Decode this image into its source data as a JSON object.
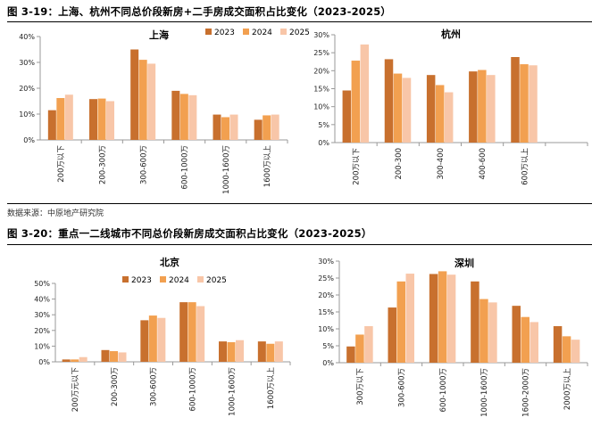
{
  "figures": [
    {
      "title": "图 3-19：上海、杭州不同总价段新房+二手房成交面积占比变化（2023-2025）"
    },
    {
      "title": "图 3-20：重点一二线城市不同总价段新房成交面积占比变化（2023-2025）"
    }
  ],
  "source": "数据来源：中原地产研究院",
  "legend": [
    "2023",
    "2024",
    "2025"
  ],
  "colors": {
    "2023": "#C8702E",
    "2024": "#F2A050",
    "2025": "#F8C6A8",
    "axis": "#999999",
    "text": "#222222"
  },
  "chart_data": [
    {
      "type": "bar",
      "title": "上海",
      "categories": [
        "200万以下",
        "200-300万",
        "300-600万",
        "600-1000万",
        "1000-1600万",
        "1600万以上"
      ],
      "series": [
        {
          "name": "2023",
          "values": [
            11.5,
            15.8,
            35.0,
            19.0,
            9.8,
            7.8
          ]
        },
        {
          "name": "2024",
          "values": [
            16.2,
            16.0,
            31.0,
            17.8,
            8.8,
            9.5
          ]
        },
        {
          "name": "2025",
          "values": [
            17.5,
            15.0,
            29.5,
            17.3,
            9.8,
            9.8
          ]
        }
      ],
      "ylim": [
        0,
        40
      ],
      "yticks": [
        0,
        10,
        20,
        30,
        40
      ],
      "ytick_labels": [
        "0%",
        "10%",
        "20%",
        "30%",
        "40%"
      ],
      "legend_position": "top-right"
    },
    {
      "type": "bar",
      "title": "杭州",
      "categories": [
        "200万以下",
        "200-300",
        "300-400",
        "400-600",
        "600万以上"
      ],
      "series": [
        {
          "name": "2023",
          "values": [
            14.5,
            23.2,
            18.8,
            19.8,
            23.8
          ]
        },
        {
          "name": "2024",
          "values": [
            22.8,
            19.2,
            16.0,
            20.2,
            21.8
          ]
        },
        {
          "name": "2025",
          "values": [
            27.3,
            18.0,
            14.0,
            18.8,
            21.5
          ]
        }
      ],
      "ylim": [
        0,
        30
      ],
      "yticks": [
        0,
        5,
        10,
        15,
        20,
        25,
        30
      ],
      "ytick_labels": [
        "0%",
        "5%",
        "10%",
        "15%",
        "20%",
        "25%",
        "30%"
      ]
    },
    {
      "type": "bar",
      "title": "北京",
      "categories": [
        "200万元以下",
        "200-300万",
        "300-600万",
        "600-1000万",
        "1000-1600万",
        "1600万以上"
      ],
      "series": [
        {
          "name": "2023",
          "values": [
            1.5,
            7.5,
            26.5,
            38.0,
            13.0,
            13.0
          ]
        },
        {
          "name": "2024",
          "values": [
            1.5,
            6.8,
            29.5,
            38.0,
            12.5,
            11.5
          ]
        },
        {
          "name": "2025",
          "values": [
            3.0,
            6.0,
            28.0,
            35.5,
            13.8,
            13.0
          ]
        }
      ],
      "ylim": [
        0,
        50
      ],
      "yticks": [
        0,
        10,
        20,
        30,
        40,
        50
      ],
      "ytick_labels": [
        "0%",
        "10%",
        "20%",
        "30%",
        "40%",
        "50%"
      ],
      "legend_position": "top-right"
    },
    {
      "type": "bar",
      "title": "深圳",
      "categories": [
        "300万以下",
        "300-600万",
        "600-1000万",
        "1000-1600万",
        "1600-2000万",
        "2000万以上"
      ],
      "series": [
        {
          "name": "2023",
          "values": [
            4.8,
            16.3,
            26.2,
            24.0,
            16.8,
            10.8
          ]
        },
        {
          "name": "2024",
          "values": [
            8.3,
            24.0,
            27.0,
            18.8,
            13.5,
            7.8
          ]
        },
        {
          "name": "2025",
          "values": [
            10.8,
            26.3,
            26.0,
            17.8,
            12.0,
            6.8
          ]
        }
      ],
      "ylim": [
        0,
        30
      ],
      "yticks": [
        0,
        5,
        10,
        15,
        20,
        25,
        30
      ],
      "ytick_labels": [
        "0%",
        "5%",
        "10%",
        "15%",
        "20%",
        "25%",
        "30%"
      ]
    }
  ]
}
